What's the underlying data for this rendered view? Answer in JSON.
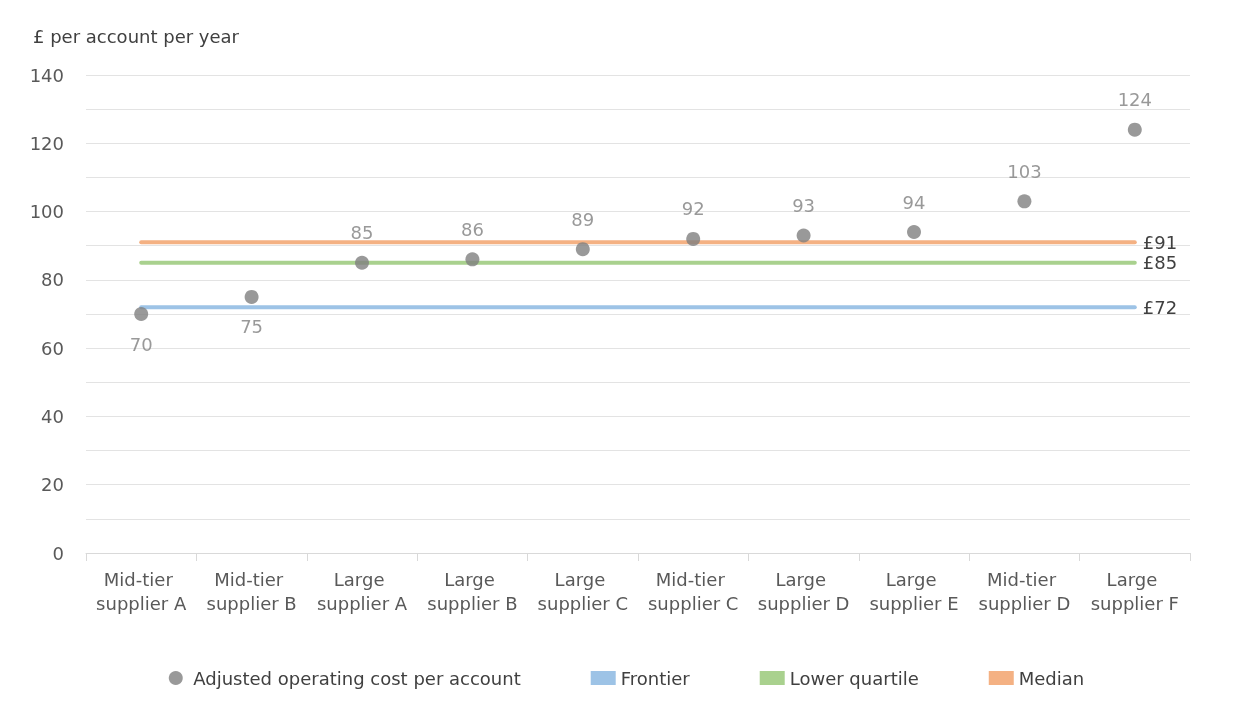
{
  "chart_data": {
    "type": "scatter",
    "ylabel": "£ per account per year",
    "categories": [
      "Mid-tier supplier A",
      "Mid-tier supplier B",
      "Large supplier A",
      "Large supplier B",
      "Large supplier C",
      "Mid-tier supplier C",
      "Large supplier D",
      "Large supplier E",
      "Mid-tier supplier D",
      "Large supplier F"
    ],
    "series": [
      {
        "name": "Adjusted operating cost per account",
        "marker": "circle",
        "color": "#7f7f7f",
        "values": [
          70,
          75,
          85,
          86,
          89,
          92,
          93,
          94,
          103,
          124
        ],
        "value_labels": [
          "70",
          "75",
          "85",
          "86",
          "89",
          "92",
          "93",
          "94",
          "103",
          "124"
        ]
      },
      {
        "name": "Frontier",
        "type": "line",
        "marker": "none",
        "color": "#9dc3e6",
        "values": [
          72,
          72,
          72,
          72,
          72,
          72,
          72,
          72,
          72,
          72
        ],
        "value_labels": [
          null,
          null,
          null,
          null,
          null,
          null,
          null,
          null,
          null,
          "£72"
        ]
      },
      {
        "name": "Lower quartile",
        "type": "line",
        "marker": "none",
        "color": "#a9d18e",
        "values": [
          85,
          85,
          85,
          85,
          85,
          85,
          85,
          85,
          85,
          85
        ],
        "value_labels": [
          null,
          null,
          null,
          null,
          null,
          null,
          null,
          null,
          null,
          "£85"
        ]
      },
      {
        "name": "Median",
        "type": "line",
        "marker": "none",
        "color": "#f4b183",
        "values": [
          91,
          91,
          91,
          91,
          91,
          91,
          91,
          91,
          91,
          91
        ],
        "value_labels": [
          null,
          null,
          null,
          null,
          null,
          null,
          null,
          null,
          null,
          "£91"
        ]
      }
    ],
    "ylim": [
      0,
      140
    ],
    "yticks": [
      0,
      {
        "value": 10,
        "label": null
      },
      20,
      {
        "value": 30,
        "label": null
      },
      40,
      {
        "value": 50,
        "label": null
      },
      60,
      {
        "value": 70,
        "label": null
      },
      80,
      {
        "value": 90,
        "label": null
      },
      100,
      {
        "value": 110,
        "label": null
      },
      120,
      {
        "value": 130,
        "label": null
      },
      140
    ],
    "grid": true,
    "legend": "bottom",
    "line_style": "solid"
  }
}
